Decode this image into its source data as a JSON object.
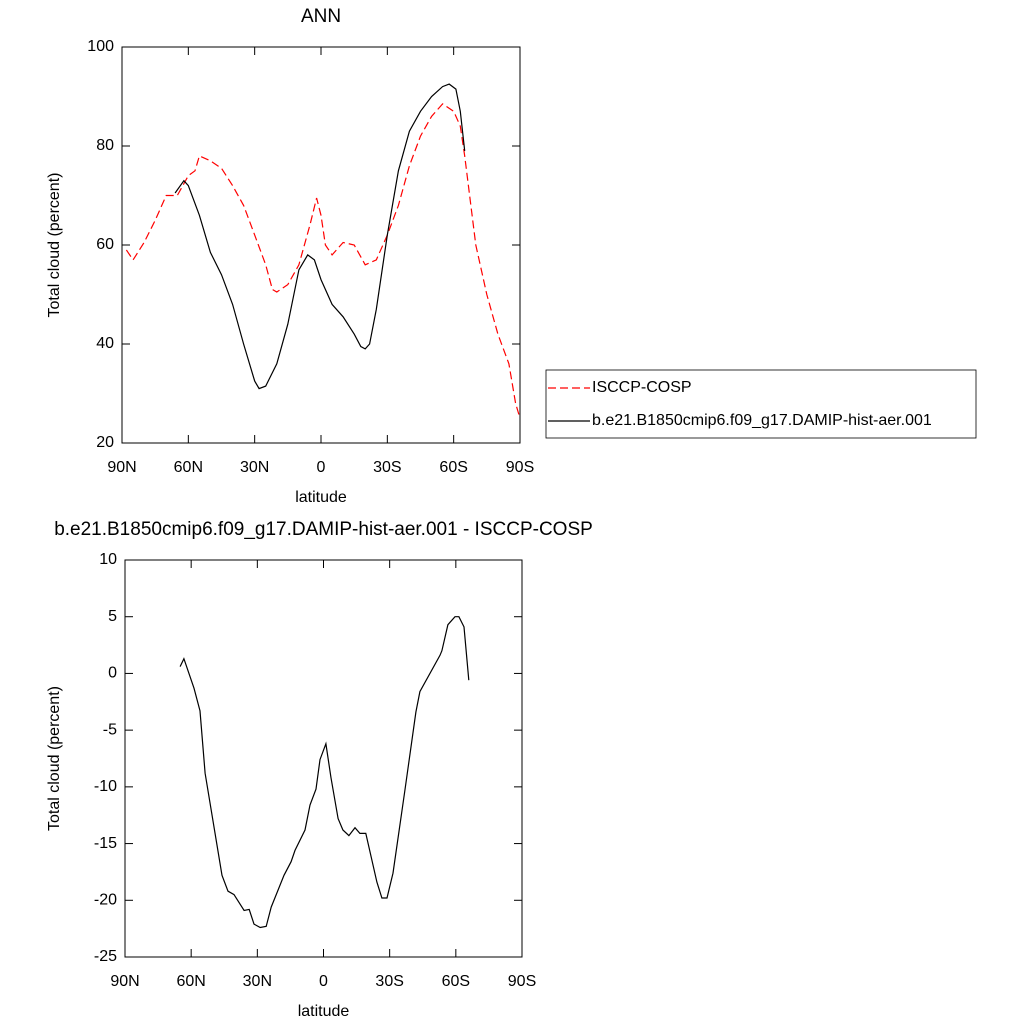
{
  "chart_data": [
    {
      "type": "line",
      "title": "ANN",
      "xlabel": "latitude",
      "ylabel": "Total cloud (percent)",
      "xlim": [
        90,
        -90
      ],
      "ylim": [
        20,
        100
      ],
      "xticks": [
        {
          "value": 90,
          "label": "90N"
        },
        {
          "value": 60,
          "label": "60N"
        },
        {
          "value": 30,
          "label": "30N"
        },
        0,
        {
          "value": -30,
          "label": "30S"
        },
        {
          "value": -60,
          "label": "60S"
        },
        {
          "value": -90,
          "label": "90S"
        }
      ],
      "yticks": [
        20,
        40,
        60,
        80,
        100
      ],
      "legend": "right",
      "series": [
        {
          "name": "ISCCP-COSP",
          "color": "#ff0000",
          "dash": "dashed",
          "x": [
            88,
            85,
            80,
            75,
            70,
            65,
            60,
            57,
            55,
            50,
            45,
            40,
            35,
            30,
            25,
            22,
            20,
            15,
            10,
            5,
            2,
            0,
            -2,
            -5,
            -10,
            -15,
            -20,
            -25,
            -30,
            -35,
            -40,
            -45,
            -50,
            -55,
            -60,
            -63,
            -65,
            -70,
            -75,
            -80,
            -85,
            -88,
            -90
          ],
          "values": [
            59,
            57,
            60.5,
            65,
            70,
            70,
            74,
            75,
            78,
            77,
            75.5,
            72,
            68,
            62,
            56,
            51,
            50.5,
            52,
            56,
            64,
            69.5,
            66,
            60,
            58,
            60.5,
            60,
            56,
            57,
            62,
            68,
            76,
            82,
            86,
            88.5,
            87,
            84,
            78,
            60,
            50,
            42,
            36,
            28,
            25
          ]
        },
        {
          "name": "b.e21.B1850cmip6.f09_g17.DAMIP-hist-aer.001",
          "color": "#000000",
          "dash": "solid",
          "x": [
            66,
            62,
            60,
            55,
            50,
            45,
            40,
            35,
            30,
            28,
            25,
            20,
            15,
            10,
            6,
            3,
            0,
            -5,
            -10,
            -15,
            -18,
            -20,
            -22,
            -25,
            -30,
            -35,
            -40,
            -45,
            -50,
            -55,
            -58,
            -61,
            -63,
            -65
          ],
          "values": [
            70.5,
            73,
            72,
            66,
            58.5,
            54,
            48,
            40,
            32.5,
            31,
            31.5,
            36,
            44,
            55,
            58,
            57,
            53,
            48,
            45.5,
            42,
            39.5,
            39,
            40,
            47,
            62,
            75,
            83,
            87,
            90,
            92,
            92.5,
            91.5,
            87,
            79
          ]
        }
      ]
    },
    {
      "type": "line",
      "title": "b.e21.B1850cmip6.f09_g17.DAMIP-hist-aer.001 - ISCCP-COSP",
      "xlabel": "latitude",
      "ylabel": "Total cloud (percent)",
      "xlim": [
        90,
        -90
      ],
      "ylim": [
        -25,
        10
      ],
      "xticks": [
        {
          "value": 90,
          "label": "90N"
        },
        {
          "value": 60,
          "label": "60N"
        },
        {
          "value": 30,
          "label": "30N"
        },
        0,
        {
          "value": -30,
          "label": "30S"
        },
        {
          "value": -60,
          "label": "60S"
        },
        {
          "value": -90,
          "label": "90S"
        }
      ],
      "yticks": [
        10,
        5,
        0,
        -5,
        -10,
        -15,
        -20,
        -25
      ],
      "series": [
        {
          "color": "#000000",
          "dash": "solid",
          "x": [
            65,
            63.3,
            58.7,
            56,
            53.7,
            46,
            43.3,
            40.6,
            36,
            33.7,
            31.5,
            28.7,
            26,
            23.7,
            17.9,
            14.7,
            12.9,
            8.4,
            6.1,
            3.4,
            1.6,
            -1.1,
            -3.4,
            -6.6,
            -8.8,
            -11.5,
            -14.3,
            -16.5,
            -19.2,
            -24.2,
            -26.5,
            -28.8,
            -31.5,
            -36.9,
            -41.9,
            -43.7,
            -52.8,
            -53.7,
            -56.4,
            -59.6,
            -61.4,
            -63.7,
            -65.9
          ],
          "values": [
            0.6,
            1.3,
            -1.3,
            -3.3,
            -8.8,
            -17.8,
            -19.2,
            -19.5,
            -20.9,
            -20.8,
            -22.1,
            -22.4,
            -22.3,
            -20.6,
            -17.8,
            -16.6,
            -15.6,
            -13.8,
            -11.6,
            -10.2,
            -7.6,
            -6.2,
            -9.2,
            -12.8,
            -13.8,
            -14.3,
            -13.6,
            -14.1,
            -14.1,
            -18.4,
            -19.8,
            -19.8,
            -17.6,
            -10.3,
            -3.4,
            -1.6,
            1.6,
            2.0,
            4.3,
            5.0,
            5.0,
            4.1,
            -0.6
          ]
        }
      ]
    }
  ]
}
